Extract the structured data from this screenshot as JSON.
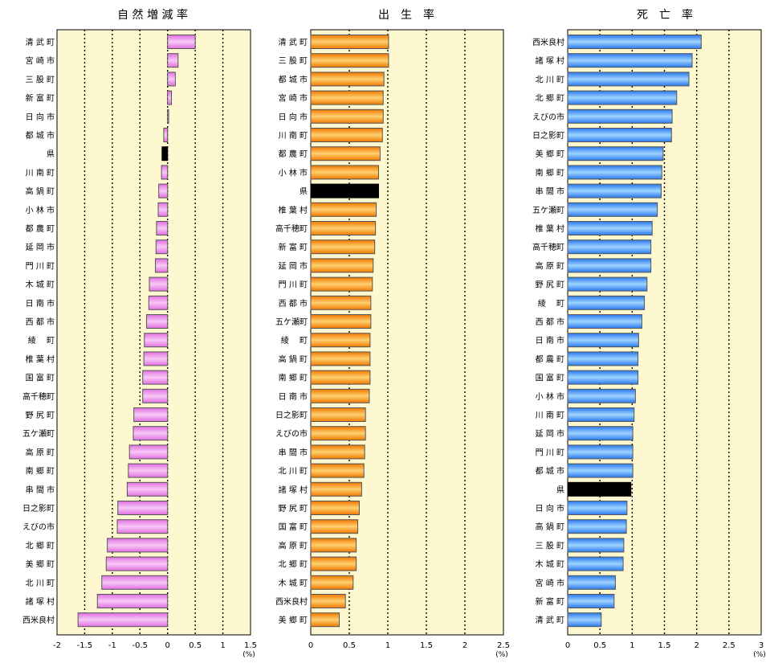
{
  "chart_data": [
    {
      "type": "bar",
      "title": "自 然 増 減 率",
      "unit": "(%)",
      "xlim": [
        -2,
        1.5
      ],
      "ticks": [
        -2,
        -1.5,
        -1,
        -0.5,
        0,
        0.5,
        1,
        1.5
      ],
      "tick_labels": [
        "-2",
        "-1.5",
        "-1",
        "-0.5",
        "0",
        "0.5",
        "1",
        "1.5"
      ],
      "categories": [
        "清 武 町",
        "宮 崎 市",
        "三 股 町",
        "新 富 町",
        "日 向 市",
        "都 城 市",
        "県",
        "川 南 町",
        "高 鍋 町",
        "小 林 市",
        "都 農 町",
        "延 岡 市",
        "門 川 町",
        "木 城 町",
        "日 南 市",
        "西 都 市",
        "綾　 町",
        "椎 葉 村",
        "国 富 町",
        "高千穂町",
        "野 尻 町",
        "五ケ瀬町",
        "高 原 町",
        "南 郷 町",
        "串 間 市",
        "日之影町",
        "えびの市",
        "北 郷 町",
        "美 郷 町",
        "北 川 町",
        "諸 塚 村",
        "西米良村"
      ],
      "values": [
        0.5,
        0.19,
        0.14,
        0.07,
        0.02,
        -0.07,
        -0.1,
        -0.11,
        -0.16,
        -0.17,
        -0.2,
        -0.21,
        -0.22,
        -0.33,
        -0.34,
        -0.38,
        -0.42,
        -0.43,
        -0.45,
        -0.45,
        -0.61,
        -0.62,
        -0.69,
        -0.71,
        -0.73,
        -0.9,
        -0.91,
        -1.09,
        -1.11,
        -1.19,
        -1.27,
        -1.62
      ],
      "highlight": "県",
      "colors": {
        "bar": "#e070e0",
        "bar_light": "#f8c8f6",
        "highlight": "#000000",
        "background": "#fdf8d0"
      }
    },
    {
      "type": "bar",
      "title": "出　生　率",
      "unit": "(%)",
      "xlim": [
        0,
        2.5
      ],
      "ticks": [
        0,
        0.5,
        1,
        1.5,
        2,
        2.5
      ],
      "tick_labels": [
        "0",
        "0.5",
        "1",
        "1.5",
        "2",
        "2.5"
      ],
      "categories": [
        "清 武 町",
        "三 股 町",
        "都 城 市",
        "宮 崎 市",
        "日 向 市",
        "川 南 町",
        "都 農 町",
        "小 林 市",
        "県",
        "椎 葉 村",
        "高千穂町",
        "新 富 町",
        "延 岡 市",
        "門 川 町",
        "西 都 市",
        "五ケ瀬町",
        "綾　 町",
        "高 鍋 町",
        "南 郷 町",
        "日 南 市",
        "日之影町",
        "えびの市",
        "串 間 市",
        "北 川 町",
        "諸 塚 村",
        "野 尻 町",
        "国 富 町",
        "高 原 町",
        "北 郷 町",
        "木 城 町",
        "西米良村",
        "美 郷 町"
      ],
      "values": [
        1.01,
        1.01,
        0.95,
        0.94,
        0.94,
        0.93,
        0.9,
        0.88,
        0.88,
        0.85,
        0.84,
        0.83,
        0.81,
        0.8,
        0.78,
        0.78,
        0.77,
        0.77,
        0.77,
        0.76,
        0.71,
        0.71,
        0.7,
        0.69,
        0.66,
        0.63,
        0.61,
        0.59,
        0.59,
        0.55,
        0.45,
        0.37
      ],
      "highlight": "県",
      "colors": {
        "bar": "#f07800",
        "bar_light": "#ffd070",
        "highlight": "#000000",
        "background": "#fdf8d0"
      }
    },
    {
      "type": "bar",
      "title": "死　亡　率",
      "unit": "(%)",
      "xlim": [
        0,
        3
      ],
      "ticks": [
        0,
        0.5,
        1,
        1.5,
        2,
        2.5,
        3
      ],
      "tick_labels": [
        "0",
        "0.5",
        "1",
        "1.5",
        "2",
        "2.5",
        "3"
      ],
      "categories": [
        "西米良村",
        "諸 塚 村",
        "北 川 町",
        "北 郷 町",
        "えびの市",
        "日之影町",
        "美 郷 町",
        "南 郷 町",
        "串 間 市",
        "五ケ瀬町",
        "椎 葉 村",
        "高千穂町",
        "高 原 町",
        "野 尻 町",
        "綾　 町",
        "西 都 市",
        "日 南 市",
        "都 農 町",
        "国 富 町",
        "小 林 市",
        "川 南 町",
        "延 岡 市",
        "門 川 町",
        "都 城 市",
        "県",
        "日 向 市",
        "高 鍋 町",
        "三 股 町",
        "木 城 町",
        "宮 崎 市",
        "新 富 町",
        "清 武 町"
      ],
      "values": [
        2.07,
        1.93,
        1.88,
        1.69,
        1.62,
        1.61,
        1.48,
        1.46,
        1.45,
        1.39,
        1.31,
        1.29,
        1.29,
        1.23,
        1.19,
        1.15,
        1.1,
        1.09,
        1.09,
        1.05,
        1.03,
        1.01,
        1.01,
        1.01,
        0.98,
        0.92,
        0.91,
        0.87,
        0.86,
        0.74,
        0.72,
        0.52
      ],
      "highlight": "県",
      "colors": {
        "bar": "#2a78ee",
        "bar_light": "#9ed4ff",
        "highlight": "#000000",
        "background": "#fdf8d0"
      }
    }
  ]
}
